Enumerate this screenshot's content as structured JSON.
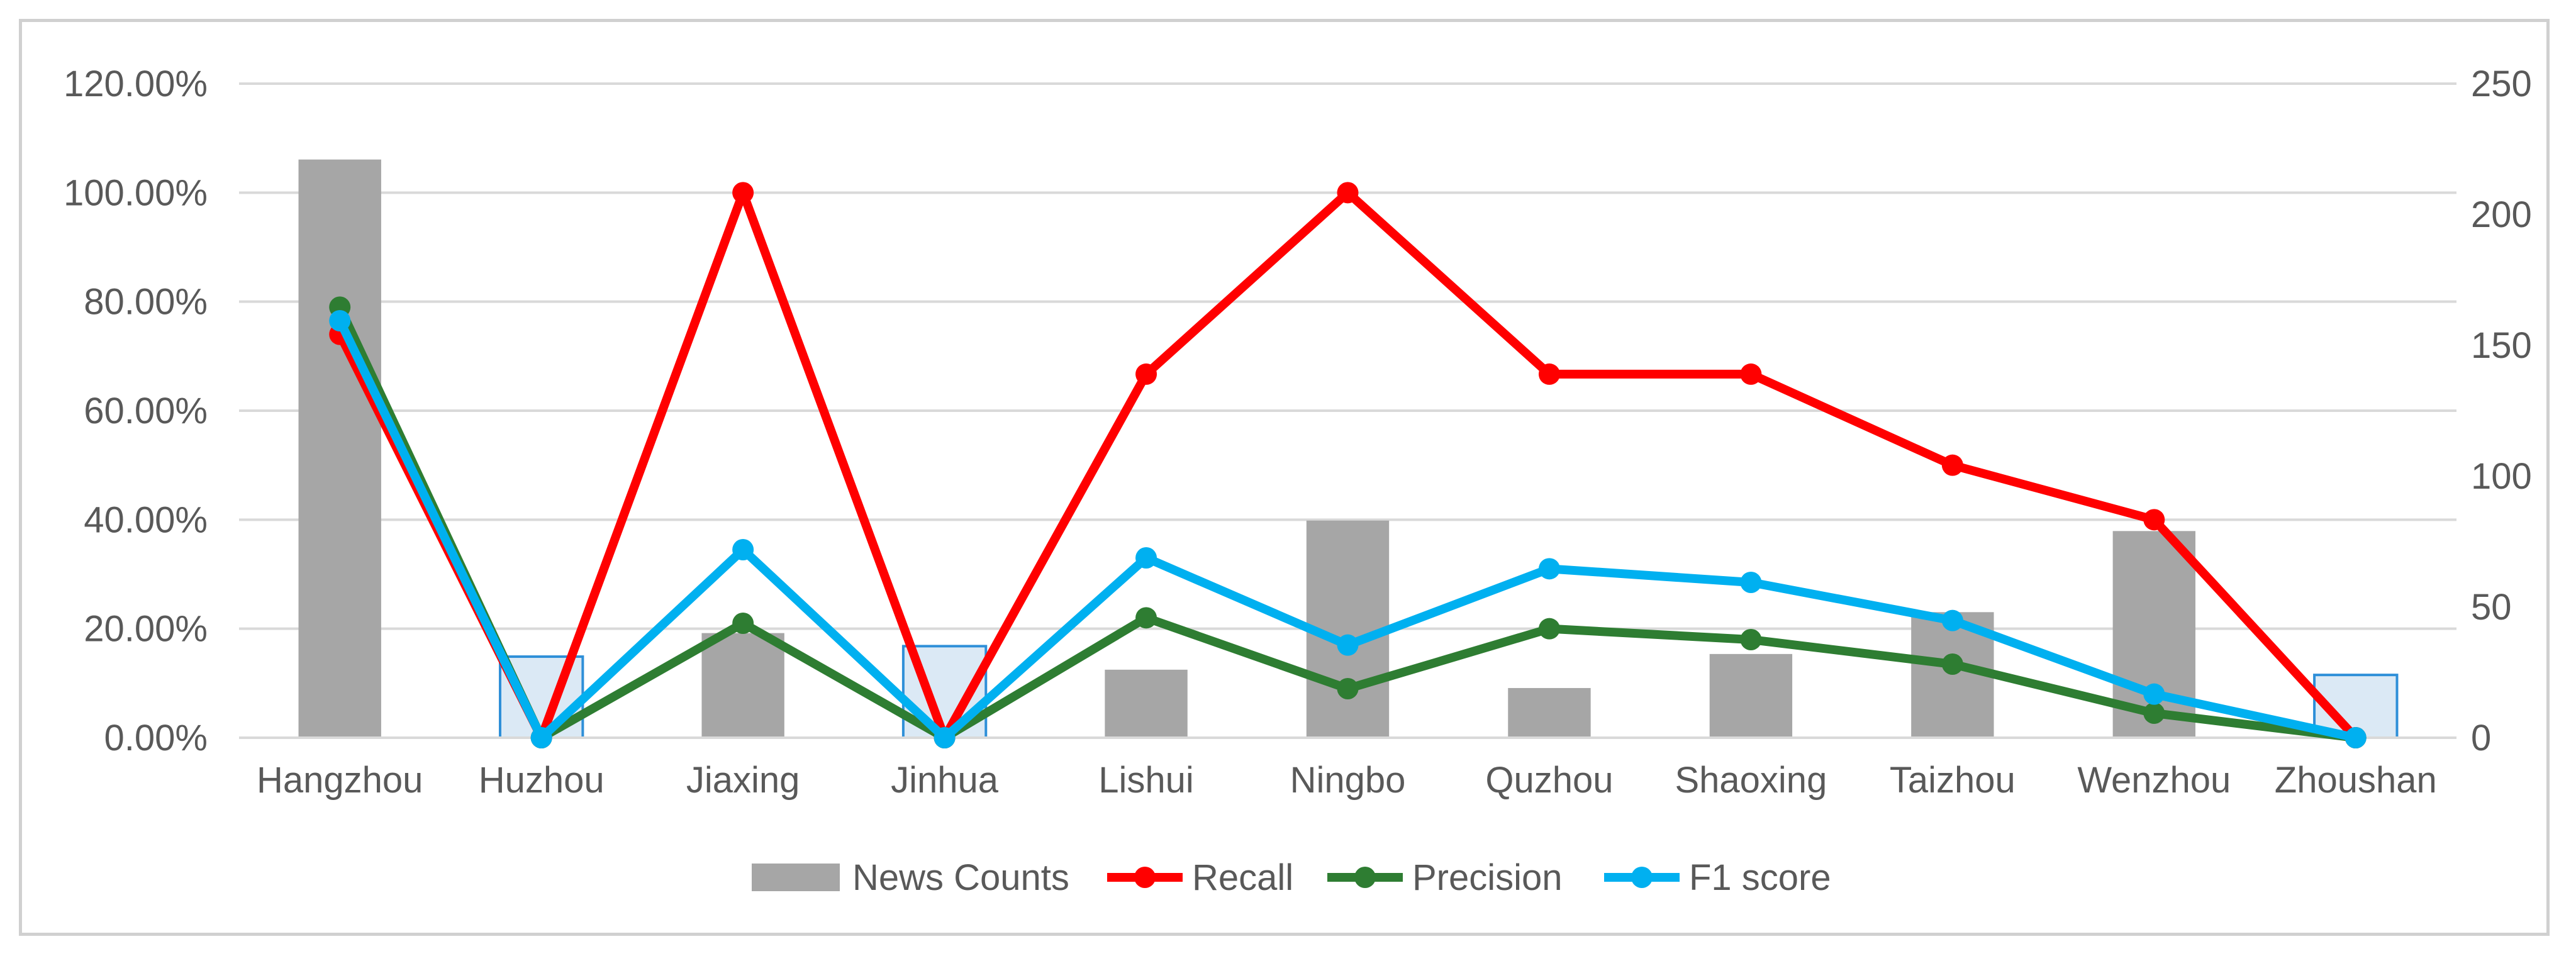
{
  "chart_data": {
    "type": "bar+line",
    "categories": [
      "Hangzhou",
      "Huzhou",
      "Jiaxing",
      "Jinhua",
      "Lishui",
      "Ningbo",
      "Quzhou",
      "Shaoxing",
      "Taizhou",
      "Wenzhou",
      "Zhoushan"
    ],
    "bars": {
      "name": "News Counts",
      "axis": "right",
      "values": [
        221,
        31,
        40,
        35,
        26,
        83,
        19,
        32,
        48,
        79,
        24
      ],
      "colors": [
        "#a6a6a6",
        "#dbe9f5",
        "#a6a6a6",
        "#dbe9f5",
        "#a6a6a6",
        "#a6a6a6",
        "#a6a6a6",
        "#a6a6a6",
        "#a6a6a6",
        "#a6a6a6",
        "#dbe9f5"
      ],
      "borders": [
        "none",
        "#2e8fd8",
        "none",
        "#2e8fd8",
        "none",
        "none",
        "none",
        "none",
        "none",
        "none",
        "#2e8fd8"
      ]
    },
    "series": [
      {
        "name": "Recall",
        "axis": "left",
        "color": "#ff0000",
        "values": [
          0.74,
          0.0,
          1.0,
          0.0,
          0.667,
          1.0,
          0.667,
          0.667,
          0.5,
          0.4,
          0.0
        ]
      },
      {
        "name": "Precision",
        "axis": "left",
        "color": "#2e7d32",
        "values": [
          0.79,
          0.0,
          0.21,
          0.0,
          0.22,
          0.09,
          0.2,
          0.18,
          0.135,
          0.045,
          0.0
        ]
      },
      {
        "name": "F1 score",
        "axis": "left",
        "color": "#00b0f0",
        "values": [
          0.765,
          0.0,
          0.345,
          0.0,
          0.33,
          0.17,
          0.31,
          0.285,
          0.215,
          0.08,
          0.0
        ]
      }
    ],
    "y_left": {
      "ylim": [
        0,
        1.2
      ],
      "ticks": [
        "0.00%",
        "20.00%",
        "40.00%",
        "60.00%",
        "80.00%",
        "100.00%",
        "120.00%"
      ]
    },
    "y_right": {
      "ylim": [
        0,
        250
      ],
      "ticks": [
        "0",
        "50",
        "100",
        "150",
        "200",
        "250"
      ]
    },
    "grid": true,
    "legend_position": "bottom",
    "legend": [
      "News Counts",
      "Recall",
      "Precision",
      "F1 score"
    ]
  }
}
